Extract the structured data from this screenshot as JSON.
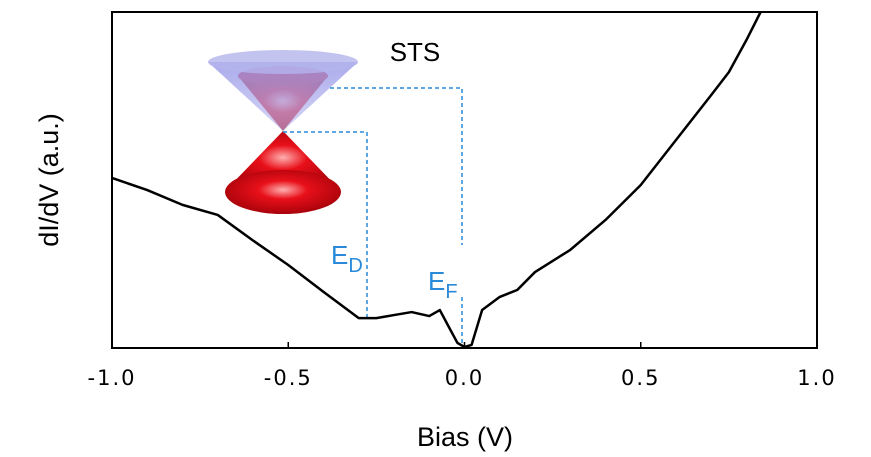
{
  "chart_data": {
    "type": "line",
    "x_label": "Bias (V)",
    "y_label": "dI/dV (a.u.)",
    "annotations": {
      "title": "STS",
      "dirac": {
        "text": "E",
        "sub": "D"
      },
      "fermi": {
        "text": "E",
        "sub": "F"
      }
    },
    "x": [
      -1.0,
      -0.9,
      -0.8,
      -0.7,
      -0.6,
      -0.5,
      -0.4,
      -0.3,
      -0.25,
      -0.2,
      -0.15,
      -0.1,
      -0.07,
      -0.04,
      -0.02,
      0.0,
      0.02,
      0.05,
      0.1,
      0.15,
      0.2,
      0.3,
      0.4,
      0.5,
      0.6,
      0.7,
      0.75,
      0.8,
      0.84
    ],
    "series": [
      {
        "color": "#000000",
        "values": [
          0.506,
          0.47,
          0.426,
          0.396,
          0.32,
          0.247,
          0.167,
          0.089,
          0.089,
          0.098,
          0.107,
          0.095,
          0.113,
          0.054,
          0.015,
          0.003,
          0.009,
          0.113,
          0.152,
          0.173,
          0.226,
          0.292,
          0.381,
          0.485,
          0.619,
          0.753,
          0.821,
          0.917,
          1.0
        ]
      }
    ],
    "xlim": [
      -1.0,
      1.0
    ],
    "ylim": [
      0,
      1
    ],
    "xticks": [
      {
        "value": -1.0,
        "label": "-1.0"
      },
      {
        "value": -0.5,
        "label": "-0.5"
      },
      {
        "value": 0.0,
        "label": "0.0"
      },
      {
        "value": 0.5,
        "label": "0.5"
      },
      {
        "value": 1.0,
        "label": "1.0"
      }
    ],
    "grid": false
  }
}
